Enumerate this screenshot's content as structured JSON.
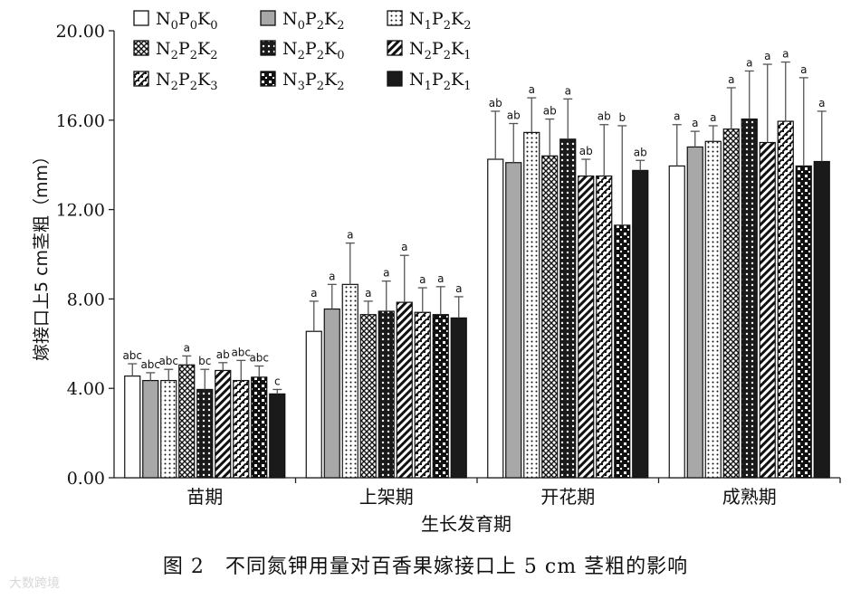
{
  "chart_data": {
    "type": "bar",
    "title": "",
    "xlabel": "生长发育期",
    "ylabel": "嫁接口上5 cm茎粗（mm）",
    "ylim": [
      0,
      20
    ],
    "yticks": [
      "0.00",
      "4.00",
      "8.00",
      "12.00",
      "16.00",
      "20.00"
    ],
    "legend_position": "top-left",
    "categories": [
      "苗期",
      "上架期",
      "开花期",
      "成熟期"
    ],
    "series": [
      {
        "name": "N0P0K0",
        "label_parts": [
          "N",
          "0",
          "P",
          "0",
          "K",
          "0"
        ],
        "pattern": "white",
        "values": [
          4.55,
          6.55,
          14.25,
          13.95
        ],
        "errors": [
          0.55,
          1.35,
          2.15,
          1.85
        ],
        "letters": [
          "abc",
          "a",
          "ab",
          "a"
        ]
      },
      {
        "name": "N0P2K2",
        "label_parts": [
          "N",
          "0",
          "P",
          "2",
          "K",
          "2"
        ],
        "pattern": "gray",
        "values": [
          4.35,
          7.55,
          14.1,
          14.8
        ],
        "errors": [
          0.35,
          1.1,
          1.75,
          0.7
        ],
        "letters": [
          "abc",
          "a",
          "ab",
          "a"
        ]
      },
      {
        "name": "N1P2K2",
        "label_parts": [
          "N",
          "1",
          "P",
          "2",
          "K",
          "2"
        ],
        "pattern": "dotted",
        "values": [
          4.35,
          8.65,
          15.45,
          15.05
        ],
        "errors": [
          0.5,
          1.85,
          1.55,
          0.7
        ],
        "letters": [
          "abc",
          "a",
          "a",
          "a"
        ]
      },
      {
        "name": "N2P2K2",
        "label_parts": [
          "N",
          "2",
          "P",
          "2",
          "K",
          "2"
        ],
        "pattern": "crosshatch",
        "values": [
          5.05,
          7.3,
          14.4,
          15.6
        ],
        "errors": [
          0.4,
          0.6,
          1.65,
          1.85
        ],
        "letters": [
          "a",
          "a",
          "ab",
          "a"
        ]
      },
      {
        "name": "N2P2K0",
        "label_parts": [
          "N",
          "2",
          "P",
          "2",
          "K",
          "0"
        ],
        "pattern": "darkdots",
        "values": [
          3.95,
          7.45,
          15.15,
          16.05
        ],
        "errors": [
          0.9,
          1.35,
          1.8,
          2.15
        ],
        "letters": [
          "bc",
          "a",
          "a",
          "a"
        ]
      },
      {
        "name": "N2P2K1",
        "label_parts": [
          "N",
          "2",
          "P",
          "2",
          "K",
          "1"
        ],
        "pattern": "diagonal",
        "values": [
          4.8,
          7.85,
          13.5,
          15.0
        ],
        "errors": [
          0.35,
          2.1,
          0.75,
          3.5
        ],
        "letters": [
          "ab",
          "a",
          "ab",
          "a"
        ]
      },
      {
        "name": "N2P2K3",
        "label_parts": [
          "N",
          "2",
          "P",
          "2",
          "K",
          "3"
        ],
        "pattern": "checker",
        "values": [
          4.35,
          7.4,
          13.5,
          15.95
        ],
        "errors": [
          0.9,
          1.1,
          2.3,
          2.65
        ],
        "letters": [
          "abc",
          "a",
          "ab",
          "a"
        ]
      },
      {
        "name": "N3P2K2",
        "label_parts": [
          "N",
          "3",
          "P",
          "2",
          "K",
          "2"
        ],
        "pattern": "blocks",
        "values": [
          4.5,
          7.3,
          11.3,
          13.95
        ],
        "errors": [
          0.5,
          1.25,
          4.45,
          3.95
        ],
        "letters": [
          "abc",
          "a",
          "b",
          "a"
        ]
      },
      {
        "name": "N1P2K1",
        "label_parts": [
          "N",
          "1",
          "P",
          "2",
          "K",
          "1"
        ],
        "pattern": "black",
        "values": [
          3.75,
          7.15,
          13.75,
          14.15
        ],
        "errors": [
          0.2,
          0.95,
          0.45,
          2.25
        ],
        "letters": [
          "c",
          "a",
          "ab",
          "a"
        ]
      }
    ]
  },
  "caption": "图 2　不同氮钾用量对百香果嫁接口上 5 cm 茎粗的影响",
  "watermark": "大数跨境"
}
